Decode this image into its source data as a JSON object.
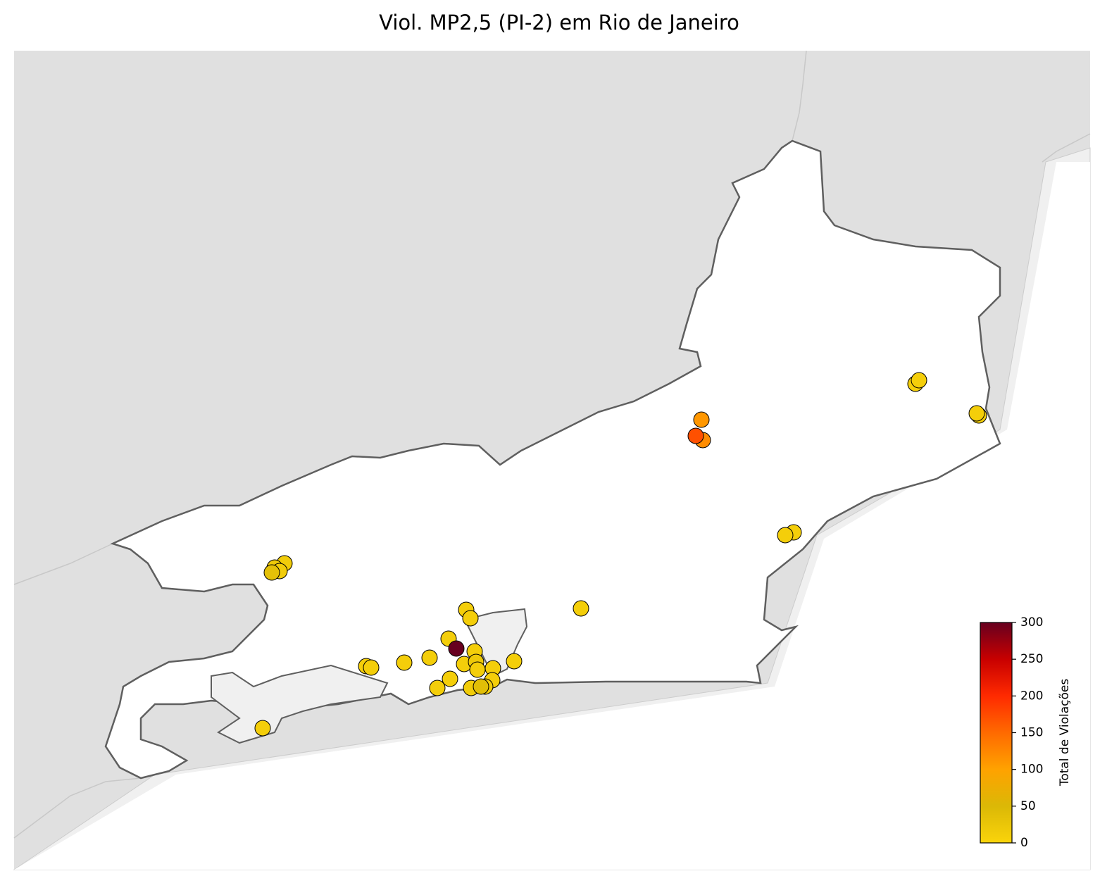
{
  "chart_data": {
    "type": "scatter-map",
    "title": "Viol. MP2,5 (PI-2) em Rio de Janeiro",
    "colorbar_label": "Total de Violações",
    "clim": [
      0,
      300
    ],
    "cticks": [
      0,
      50,
      100,
      150,
      200,
      250,
      300
    ],
    "colormap": [
      "#fad40b",
      "#dbb806",
      "#ffa200",
      "#ff6a00",
      "#ff2a00",
      "#c80000",
      "#67001f"
    ],
    "values": [
      10,
      10,
      15,
      10,
      110,
      120,
      170,
      10,
      10,
      15,
      20,
      15,
      35,
      10,
      10,
      10,
      10,
      300,
      10,
      10,
      10,
      10,
      10,
      10,
      20,
      10,
      10,
      10,
      10,
      10,
      15,
      10,
      15,
      40,
      10
    ]
  }
}
